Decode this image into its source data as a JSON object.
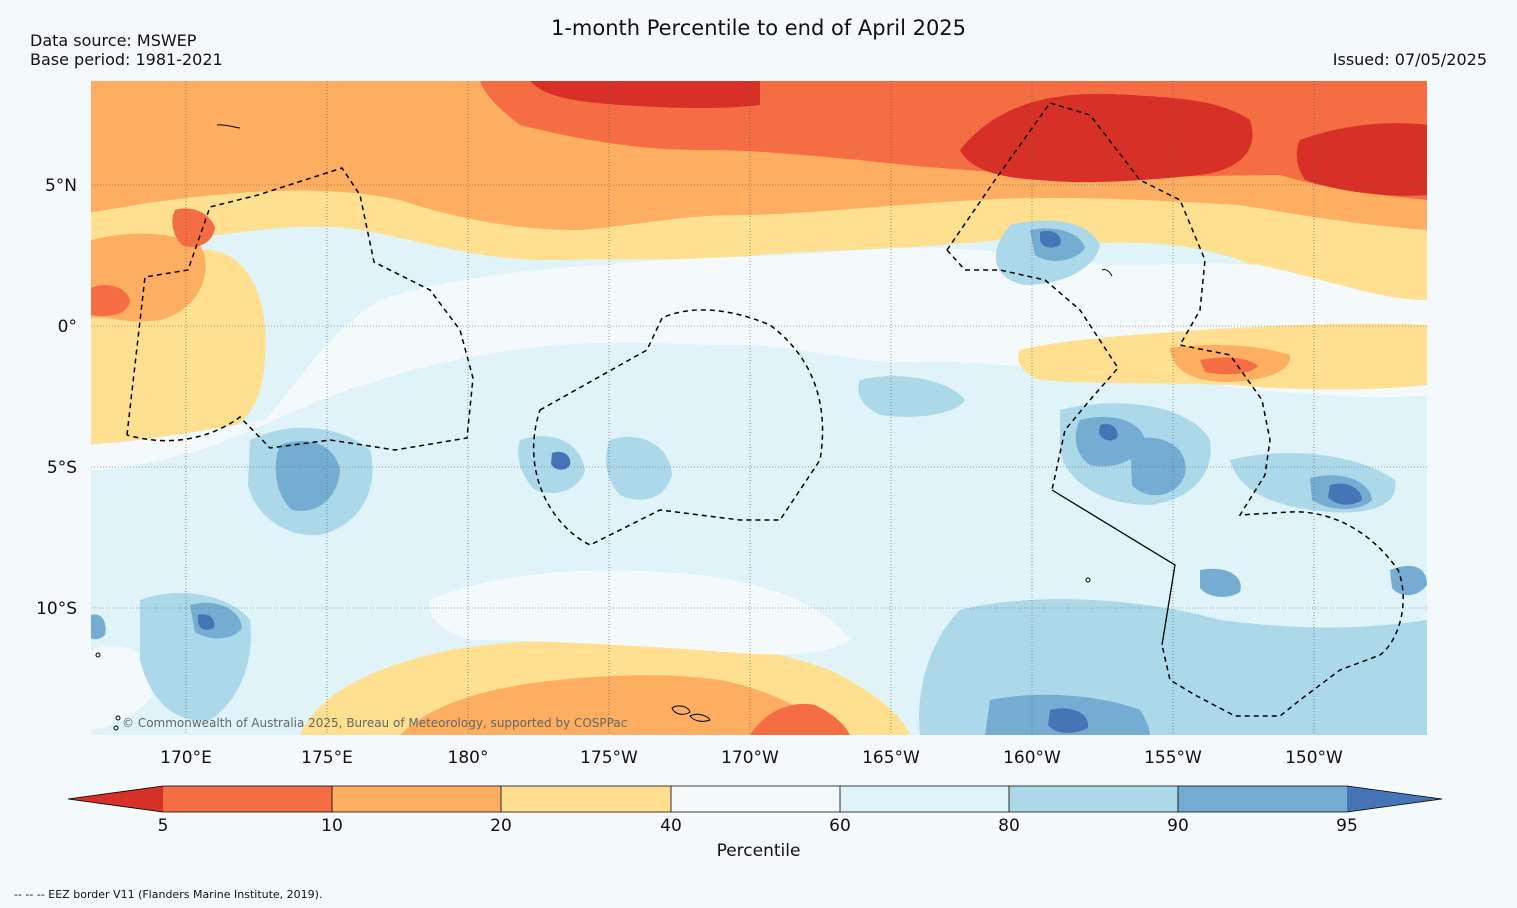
{
  "header": {
    "title": "1-month Percentile to end of April 2025",
    "data_source": "Data source: MSWEP",
    "base_period": "Base period: 1981-2021",
    "issued": "Issued: 07/05/2025"
  },
  "map": {
    "lat_labels": [
      "5°N",
      "0°",
      "5°S",
      "10°S"
    ],
    "lon_labels": [
      "170°E",
      "175°E",
      "180°",
      "175°W",
      "170°W",
      "165°W",
      "160°W",
      "155°W",
      "150°W"
    ],
    "copyright": "© Commonwealth of Australia 2025, Bureau of Meteorology, supported by COSPPac"
  },
  "colorbar": {
    "label": "Percentile",
    "ticks": [
      "5",
      "10",
      "20",
      "40",
      "60",
      "80",
      "90",
      "95"
    ],
    "colors": {
      "below5": "#d73027",
      "p5_10": "#f46d43",
      "p10_20": "#fdae61",
      "p20_40": "#fee090",
      "p40_60": "#f4f9fc",
      "p60_80": "#e0f3f8",
      "p80_90": "#abd9e9",
      "p90_95": "#74add1",
      "above95": "#4575b4"
    }
  },
  "footer": {
    "eez_note": "--  --  -- EEZ border V11 (Flanders Marine Institute, 2019)."
  }
}
